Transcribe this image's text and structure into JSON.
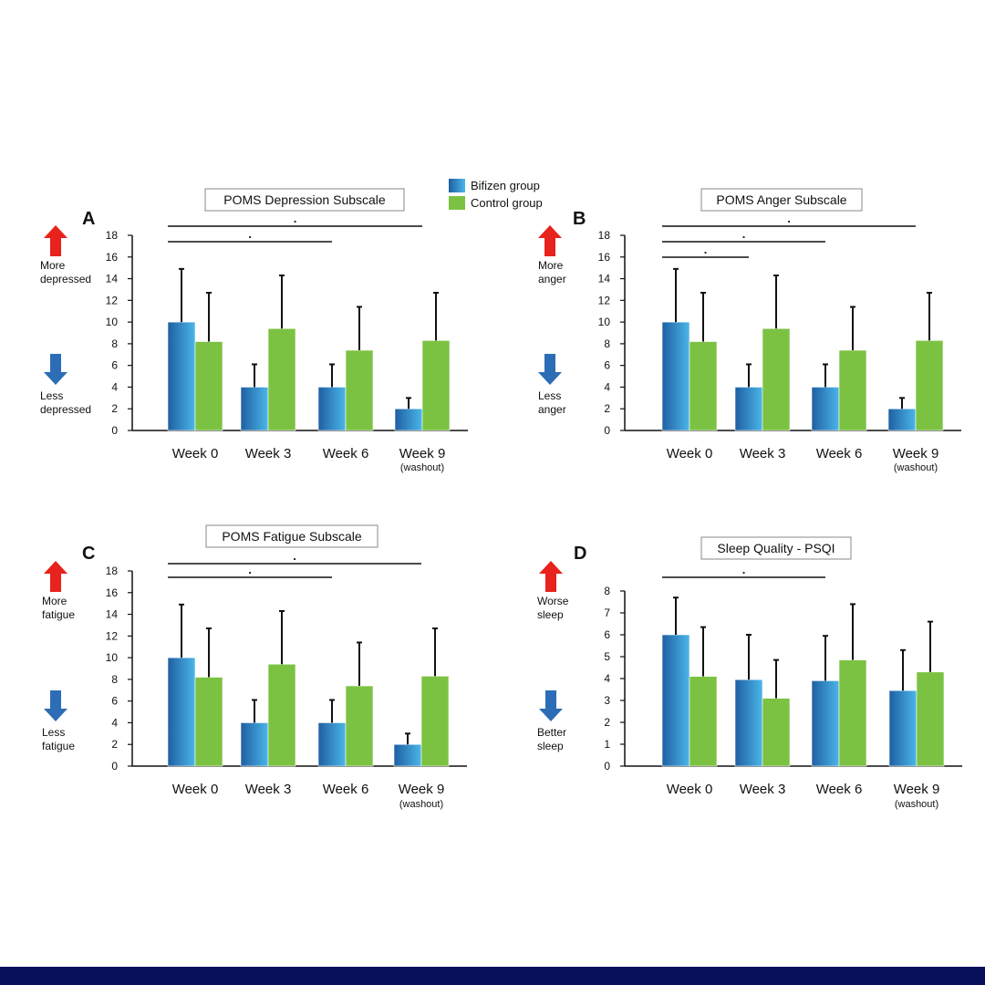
{
  "legend": [
    {
      "label": "Bifizen group",
      "color_dark": "#1f5fa3",
      "color_light": "#4bb6e8"
    },
    {
      "label": "Control group",
      "color": "#7cc242"
    }
  ],
  "colors": {
    "up_arrow": "#e8221c",
    "down_arrow": "#2c6db5",
    "bar_outline": "#ffffff",
    "footer_band": "#0a0f5c"
  },
  "chart_data": [
    {
      "type": "bar",
      "panel_letter": "A",
      "title": "POMS Depression Subscale",
      "categories": [
        "Week 0",
        "Week 3",
        "Week 6",
        "Week 9"
      ],
      "category_sublabels": [
        "",
        "",
        "",
        "(washout)"
      ],
      "ylim": [
        0,
        18
      ],
      "yticks": [
        0,
        2,
        4,
        6,
        8,
        10,
        12,
        14,
        16,
        18
      ],
      "series": [
        {
          "name": "Bifizen group",
          "values": [
            10,
            4,
            4,
            2
          ],
          "errors": [
            4.9,
            2.1,
            2.1,
            1.0
          ]
        },
        {
          "name": "Control group",
          "values": [
            8.2,
            9.4,
            7.4,
            8.3
          ],
          "errors": [
            4.5,
            4.9,
            4.0,
            4.4
          ]
        }
      ],
      "up_label": [
        "More",
        "depressed"
      ],
      "down_label": [
        "Less",
        "depressed"
      ],
      "significance": [
        {
          "from": 0,
          "to": 3,
          "mark": "."
        },
        {
          "from": 0,
          "to": 2,
          "mark": "."
        }
      ]
    },
    {
      "type": "bar",
      "panel_letter": "B",
      "title": "POMS Anger Subscale",
      "categories": [
        "Week 0",
        "Week 3",
        "Week 6",
        "Week 9"
      ],
      "category_sublabels": [
        "",
        "",
        "",
        "(washout)"
      ],
      "ylim": [
        0,
        18
      ],
      "yticks": [
        0,
        2,
        4,
        6,
        8,
        10,
        12,
        14,
        16,
        18
      ],
      "series": [
        {
          "name": "Bifizen group",
          "values": [
            10,
            4,
            4,
            2
          ],
          "errors": [
            4.9,
            2.1,
            2.1,
            1.0
          ]
        },
        {
          "name": "Control group",
          "values": [
            8.2,
            9.4,
            7.4,
            8.3
          ],
          "errors": [
            4.5,
            4.9,
            4.0,
            4.4
          ]
        }
      ],
      "up_label": [
        "More",
        "anger"
      ],
      "down_label": [
        "Less",
        "anger"
      ],
      "significance": [
        {
          "from": 0,
          "to": 3,
          "mark": "."
        },
        {
          "from": 0,
          "to": 2,
          "mark": "."
        },
        {
          "from": 0,
          "to": 1,
          "mark": "."
        }
      ]
    },
    {
      "type": "bar",
      "panel_letter": "C",
      "title": "POMS Fatigue Subscale",
      "categories": [
        "Week 0",
        "Week 3",
        "Week 6",
        "Week 9"
      ],
      "category_sublabels": [
        "",
        "",
        "",
        "(washout)"
      ],
      "ylim": [
        0,
        18
      ],
      "yticks": [
        0,
        2,
        4,
        6,
        8,
        10,
        12,
        14,
        16,
        18
      ],
      "series": [
        {
          "name": "Bifizen group",
          "values": [
            10,
            4,
            4,
            2
          ],
          "errors": [
            4.9,
            2.1,
            2.1,
            1.0
          ]
        },
        {
          "name": "Control group",
          "values": [
            8.2,
            9.4,
            7.4,
            8.3
          ],
          "errors": [
            4.5,
            4.9,
            4.0,
            4.4
          ]
        }
      ],
      "up_label": [
        "More",
        "fatigue"
      ],
      "down_label": [
        "Less",
        "fatigue"
      ],
      "significance": [
        {
          "from": 0,
          "to": 3,
          "mark": "."
        },
        {
          "from": 0,
          "to": 2,
          "mark": "."
        }
      ]
    },
    {
      "type": "bar",
      "panel_letter": "D",
      "title": "Sleep Quality - PSQI",
      "categories": [
        "Week 0",
        "Week 3",
        "Week 6",
        "Week 9"
      ],
      "category_sublabels": [
        "",
        "",
        "",
        "(washout)"
      ],
      "ylim": [
        0,
        8
      ],
      "yticks": [
        0,
        1,
        2,
        3,
        4,
        5,
        6,
        7,
        8
      ],
      "series": [
        {
          "name": "Bifizen group",
          "values": [
            6.0,
            3.95,
            3.9,
            3.45
          ],
          "errors": [
            1.7,
            2.05,
            2.05,
            1.85
          ]
        },
        {
          "name": "Control group",
          "values": [
            4.1,
            3.1,
            4.85,
            4.3
          ],
          "errors": [
            2.25,
            1.75,
            2.55,
            2.3
          ]
        }
      ],
      "up_label": [
        "Worse",
        "sleep"
      ],
      "down_label": [
        "Better",
        "sleep"
      ],
      "significance": [
        {
          "from": 0,
          "to": 2,
          "mark": "."
        }
      ]
    }
  ]
}
